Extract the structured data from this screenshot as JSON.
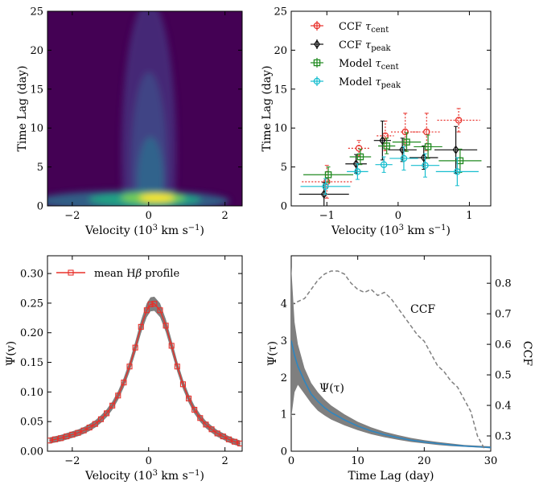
{
  "chart_data": [
    {
      "id": "a",
      "type": "heatmap",
      "title": "",
      "xlabel": "Velocity (10^3 km s^-1)",
      "ylabel": "Time Lag (day)",
      "xlim": [
        -2.65,
        2.45
      ],
      "ylim": [
        0,
        25
      ],
      "xticks": [
        -2,
        0,
        2
      ],
      "yticks": [
        0,
        5,
        10,
        15,
        20,
        25
      ],
      "description_values": {
        "ridge_center_velocity": 0.0,
        "peak_lag": 0.8,
        "peak_velocity": 0.4
      },
      "colormap": [
        "#440154",
        "#482878",
        "#3e4989",
        "#31688e",
        "#26828e",
        "#1f9e89",
        "#35b779",
        "#6ece58",
        "#b5de2b",
        "#fde725"
      ]
    },
    {
      "id": "b",
      "type": "scatter",
      "xlabel": "Velocity (10^3 km s^-1)",
      "ylabel": "Time Lag (day)",
      "xlim": [
        -1.5,
        1.3
      ],
      "ylim": [
        0,
        25
      ],
      "xticks": [
        -1,
        0,
        1
      ],
      "yticks": [
        0,
        5,
        10,
        15,
        20,
        25
      ],
      "series": [
        {
          "name": "CCF τcent",
          "label_main": "CCF ",
          "label_sym": "τ",
          "label_sub": "cent",
          "color": "#e8302a",
          "marker": "circle",
          "points": [
            {
              "x": -1.0,
              "y": 3.1,
              "xerr": 0.35,
              "yerr": 2.1
            },
            {
              "x": -0.55,
              "y": 7.4,
              "xerr": 0.15,
              "yerr": 1.0
            },
            {
              "x": -0.18,
              "y": 9.0,
              "xerr": 0.12,
              "yerr": 1.9
            },
            {
              "x": 0.1,
              "y": 9.5,
              "xerr": 0.2,
              "yerr": 2.4
            },
            {
              "x": 0.4,
              "y": 9.5,
              "xerr": 0.2,
              "yerr": 2.4
            },
            {
              "x": 0.85,
              "y": 11.0,
              "xerr": 0.3,
              "yerr": 1.5
            }
          ]
        },
        {
          "name": "CCF τpeak",
          "label_main": "CCF ",
          "label_sym": "τ",
          "label_sub": "peak",
          "color": "#111111",
          "marker": "diamond",
          "points": [
            {
              "x": -1.0,
              "y": 1.5,
              "xerr": 0.35,
              "yerr": 1.5
            },
            {
              "x": -0.55,
              "y": 5.4,
              "xerr": 0.15,
              "yerr": 1.2
            },
            {
              "x": -0.18,
              "y": 8.4,
              "xerr": 0.12,
              "yerr": 2.5
            },
            {
              "x": 0.1,
              "y": 7.2,
              "xerr": 0.2,
              "yerr": 1.5
            },
            {
              "x": 0.4,
              "y": 6.2,
              "xerr": 0.2,
              "yerr": 1.5
            },
            {
              "x": 0.85,
              "y": 7.2,
              "xerr": 0.3,
              "yerr": 3.0
            }
          ]
        },
        {
          "name": "Model τcent",
          "label_main": "Model ",
          "label_sym": "τ",
          "label_sub": "cent",
          "color": "#208a20",
          "marker": "square",
          "points": [
            {
              "x": -1.0,
              "y": 4.0,
              "xerr": 0.35,
              "yerr": 1.0
            },
            {
              "x": -0.55,
              "y": 6.3,
              "xerr": 0.15,
              "yerr": 1.0
            },
            {
              "x": -0.18,
              "y": 7.7,
              "xerr": 0.12,
              "yerr": 1.0
            },
            {
              "x": 0.1,
              "y": 8.2,
              "xerr": 0.2,
              "yerr": 1.2
            },
            {
              "x": 0.4,
              "y": 7.6,
              "xerr": 0.2,
              "yerr": 1.5
            },
            {
              "x": 0.85,
              "y": 5.8,
              "xerr": 0.3,
              "yerr": 1.5
            }
          ]
        },
        {
          "name": "Model τpeak",
          "label_main": "Model ",
          "label_sym": "τ",
          "label_sub": "peak",
          "color": "#17becf",
          "marker": "circle-filled",
          "points": [
            {
              "x": -1.0,
              "y": 2.5,
              "xerr": 0.35,
              "yerr": 1.0
            },
            {
              "x": -0.55,
              "y": 4.4,
              "xerr": 0.15,
              "yerr": 1.0
            },
            {
              "x": -0.18,
              "y": 5.3,
              "xerr": 0.12,
              "yerr": 1.0
            },
            {
              "x": 0.1,
              "y": 6.1,
              "xerr": 0.2,
              "yerr": 1.5
            },
            {
              "x": 0.4,
              "y": 5.2,
              "xerr": 0.2,
              "yerr": 1.5
            },
            {
              "x": 0.85,
              "y": 4.4,
              "xerr": 0.3,
              "yerr": 1.8
            }
          ]
        }
      ],
      "legend": "top-left"
    },
    {
      "id": "c",
      "type": "line",
      "xlabel": "Velocity (10^3 km s^-1)",
      "ylabel": "Ψ(v)",
      "xlim": [
        -2.65,
        2.45
      ],
      "ylim": [
        0,
        0.33
      ],
      "xticks": [
        -2,
        0,
        2
      ],
      "yticks": [
        0.0,
        0.05,
        0.1,
        0.15,
        0.2,
        0.25,
        0.3
      ],
      "series_name": "mean Hβ profile",
      "legend_main": "mean H",
      "legend_sym": "β",
      "legend_rest": " profile",
      "color": "#e8302a",
      "x": [
        -2.6,
        -2.45,
        -2.3,
        -2.15,
        -2.0,
        -1.85,
        -1.7,
        -1.55,
        -1.4,
        -1.25,
        -1.1,
        -0.95,
        -0.8,
        -0.65,
        -0.5,
        -0.35,
        -0.2,
        -0.05,
        0.05,
        0.15,
        0.3,
        0.45,
        0.6,
        0.75,
        0.9,
        1.05,
        1.2,
        1.35,
        1.5,
        1.65,
        1.8,
        1.95,
        2.1,
        2.25,
        2.4
      ],
      "y": [
        0.018,
        0.02,
        0.022,
        0.025,
        0.028,
        0.031,
        0.035,
        0.04,
        0.046,
        0.054,
        0.064,
        0.077,
        0.094,
        0.116,
        0.143,
        0.175,
        0.21,
        0.238,
        0.248,
        0.249,
        0.238,
        0.212,
        0.178,
        0.143,
        0.113,
        0.089,
        0.07,
        0.056,
        0.045,
        0.037,
        0.03,
        0.025,
        0.02,
        0.016,
        0.013
      ],
      "band_halfwidth": 0.012
    },
    {
      "id": "d",
      "type": "line",
      "xlabel": "Time Lag (day)",
      "ylabel": "Ψ(τ)",
      "ylabel2": "CCF",
      "xlim": [
        0,
        30
      ],
      "ylim": [
        0,
        5.3
      ],
      "y2lim": [
        0.25,
        0.89
      ],
      "xticks": [
        0,
        10,
        20,
        30
      ],
      "yticks": [
        0,
        1,
        2,
        3,
        4
      ],
      "y2ticks": [
        0.3,
        0.4,
        0.5,
        0.6,
        0.7,
        0.8
      ],
      "psi_label": "Ψ(τ)",
      "ccf_label": "CCF",
      "psi": {
        "color": "#2e86c1",
        "x": [
          0,
          0.5,
          1,
          2,
          3,
          4,
          5,
          6,
          8,
          10,
          12,
          14,
          16,
          18,
          20,
          22,
          24,
          26,
          28,
          30
        ],
        "y": [
          3.0,
          2.6,
          2.3,
          1.9,
          1.55,
          1.35,
          1.18,
          1.05,
          0.85,
          0.68,
          0.55,
          0.45,
          0.37,
          0.3,
          0.25,
          0.21,
          0.17,
          0.14,
          0.12,
          0.1
        ],
        "band_lo": [
          0.9,
          1.6,
          1.8,
          1.55,
          1.3,
          1.1,
          0.97,
          0.86,
          0.7,
          0.57,
          0.46,
          0.38,
          0.31,
          0.25,
          0.21,
          0.17,
          0.14,
          0.12,
          0.1,
          0.08
        ],
        "band_hi": [
          5.0,
          3.5,
          2.9,
          2.25,
          1.85,
          1.6,
          1.4,
          1.24,
          1.0,
          0.8,
          0.65,
          0.53,
          0.44,
          0.36,
          0.3,
          0.25,
          0.21,
          0.17,
          0.15,
          0.13
        ]
      },
      "ccf": {
        "color": "#808080",
        "x": [
          0,
          1,
          2,
          3,
          4,
          5,
          6,
          7,
          8,
          9,
          10,
          11,
          12,
          13,
          14,
          15,
          16,
          17,
          18,
          19,
          20,
          21,
          22,
          23,
          24,
          25,
          26,
          27,
          28,
          29
        ],
        "y": [
          0.73,
          0.74,
          0.75,
          0.78,
          0.81,
          0.83,
          0.84,
          0.84,
          0.83,
          0.8,
          0.78,
          0.77,
          0.78,
          0.76,
          0.77,
          0.75,
          0.72,
          0.69,
          0.66,
          0.63,
          0.61,
          0.57,
          0.53,
          0.51,
          0.48,
          0.46,
          0.42,
          0.38,
          0.3,
          0.26
        ]
      }
    }
  ]
}
